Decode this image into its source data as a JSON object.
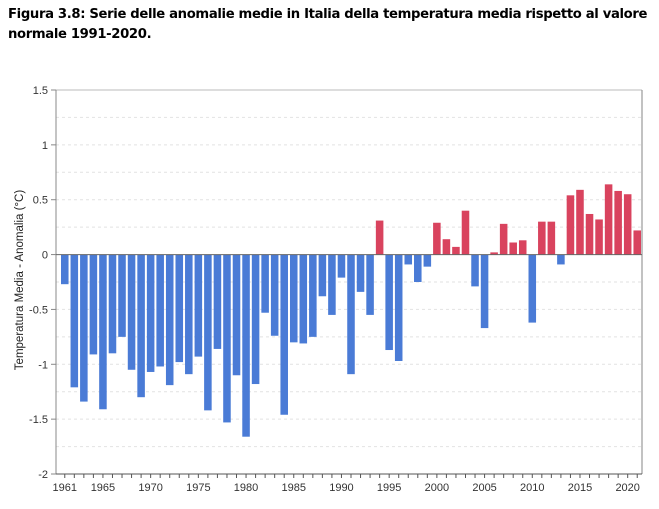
{
  "caption": "Figura 3.8: Serie delle anomalie medie in Italia della temperatura media rispetto al valore normale 1991-2020.",
  "chart_data": {
    "type": "bar",
    "title": "",
    "xlabel": "",
    "ylabel": "Temperatura Media - Anomalia (°C)",
    "ylim": [
      -2,
      1.5
    ],
    "yticks": [
      -2,
      -1.5,
      -1,
      -0.5,
      0,
      0.5,
      1,
      1.5
    ],
    "ytick_labels": [
      "-2",
      "-1.5",
      "-1",
      "-0.5",
      "0",
      "0.5",
      "1",
      "1.5"
    ],
    "xtick_labels": [
      "1961",
      "1965",
      "1970",
      "1975",
      "1980",
      "1985",
      "1990",
      "1995",
      "2000",
      "2005",
      "2010",
      "2015",
      "2020"
    ],
    "grid": true,
    "colors": {
      "positive": "#d9435e",
      "negative": "#4a7bd6"
    },
    "categories": [
      1961,
      1962,
      1963,
      1964,
      1965,
      1966,
      1967,
      1968,
      1969,
      1970,
      1971,
      1972,
      1973,
      1974,
      1975,
      1976,
      1977,
      1978,
      1979,
      1980,
      1981,
      1982,
      1983,
      1984,
      1985,
      1986,
      1987,
      1988,
      1989,
      1990,
      1991,
      1992,
      1993,
      1994,
      1995,
      1996,
      1997,
      1998,
      1999,
      2000,
      2001,
      2002,
      2003,
      2004,
      2005,
      2006,
      2007,
      2008,
      2009,
      2010,
      2011,
      2012,
      2013,
      2014,
      2015,
      2016,
      2017,
      2018,
      2019,
      2020,
      2021
    ],
    "values": [
      -0.27,
      -1.21,
      -1.34,
      -0.91,
      -1.41,
      -0.9,
      -0.75,
      -1.05,
      -1.3,
      -1.07,
      -1.02,
      -1.19,
      -0.98,
      -1.09,
      -0.93,
      -1.42,
      -0.86,
      -1.53,
      -1.1,
      -1.66,
      -1.18,
      -0.53,
      -0.74,
      -1.46,
      -0.8,
      -0.81,
      -0.75,
      -0.38,
      -0.55,
      -0.21,
      -1.09,
      -0.34,
      -0.55,
      0.31,
      -0.87,
      -0.97,
      -0.09,
      -0.25,
      -0.11,
      0.29,
      0.14,
      0.07,
      0.4,
      -0.29,
      -0.67,
      0.02,
      0.28,
      0.11,
      0.13,
      -0.62,
      0.3,
      0.3,
      -0.09,
      0.54,
      0.59,
      0.37,
      0.32,
      0.64,
      0.58,
      0.55,
      0.22
    ]
  }
}
